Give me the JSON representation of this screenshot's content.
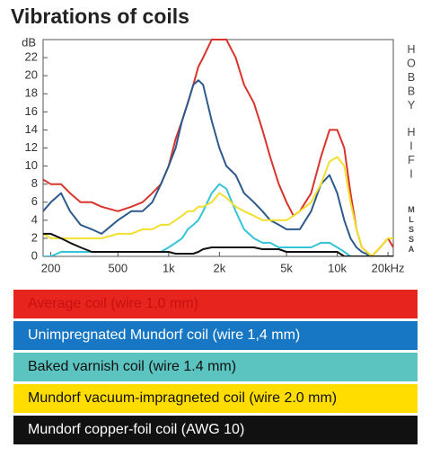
{
  "chart_data": {
    "type": "line",
    "title": "Vibrations of coils",
    "y_label": "dB",
    "side_labels": [
      "HOBBY",
      "HIFI",
      "MLSSA"
    ],
    "log_x": true,
    "xlim": [
      180,
      21500
    ],
    "ylim": [
      0,
      24
    ],
    "xticks": [
      200,
      500,
      {
        "value": 1000,
        "label": "1k"
      },
      {
        "value": 2000,
        "label": "2k"
      },
      {
        "value": 5000,
        "label": "5k"
      },
      {
        "value": 10000,
        "label": "10k"
      },
      {
        "value": 20000,
        "label": "20kHz"
      }
    ],
    "yticks": [
      0,
      2,
      4,
      6,
      8,
      10,
      12,
      14,
      16,
      18,
      20,
      22
    ],
    "x": [
      180,
      200,
      230,
      260,
      300,
      350,
      400,
      500,
      600,
      700,
      800,
      900,
      1000,
      1100,
      1200,
      1300,
      1400,
      1500,
      1600,
      1800,
      2000,
      2200,
      2500,
      2800,
      3200,
      3600,
      4000,
      4500,
      5000,
      5500,
      6000,
      7000,
      8000,
      9000,
      10000,
      11000,
      12000,
      13000,
      14000,
      16000,
      18000,
      20000,
      21500
    ],
    "series": [
      {
        "name": "Average coil (wire 1,0 mm)",
        "color": "#e8241e",
        "line_color": "#d9342b",
        "text_color": "#c81010",
        "values": [
          8.5,
          8,
          8,
          7,
          6,
          6,
          5.5,
          5,
          5.5,
          6,
          7,
          8,
          10,
          13,
          15,
          17,
          19,
          21,
          22,
          24,
          24,
          24,
          22,
          19,
          17,
          14,
          11,
          8,
          6,
          4.5,
          5,
          7,
          11,
          14,
          14,
          12,
          7,
          3,
          1,
          0,
          1,
          2,
          1
        ]
      },
      {
        "name": "Unimpregnated Mundorf coil (wire 1,4 mm)",
        "color": "#1877c4",
        "line_color": "#2c5a8c",
        "text_color": "#ffffff",
        "values": [
          5,
          6,
          7,
          5,
          3.5,
          3,
          2.5,
          4,
          5,
          5,
          6,
          8,
          10,
          12,
          15,
          17,
          19,
          19.5,
          19,
          15,
          12,
          10,
          9,
          7,
          6,
          5,
          4,
          3.5,
          3,
          3,
          3,
          5,
          8,
          9,
          7,
          4,
          2,
          1,
          0.5,
          0,
          0,
          0,
          0
        ]
      },
      {
        "name": "Baked varnish coil (wire 1.4 mm)",
        "color": "#5cc4c0",
        "line_color": "#33c4d8",
        "text_color": "#111111",
        "values": [
          0,
          0,
          0.5,
          0.5,
          0.5,
          0.5,
          0.5,
          0.5,
          0.5,
          0.5,
          0.5,
          0.5,
          1,
          1.5,
          2,
          3,
          3.5,
          4,
          5,
          7,
          8,
          7.5,
          5,
          3,
          2,
          1.5,
          1.5,
          1,
          1,
          1,
          1,
          1,
          1.5,
          1.5,
          1,
          0.5,
          0,
          0,
          0,
          0,
          0,
          0,
          0
        ]
      },
      {
        "name": "Mundorf vacuum-impragneted coil (wire 2.0 mm)",
        "color": "#ffdd00",
        "line_color": "#f2df2e",
        "text_color": "#111111",
        "values": [
          2.5,
          2,
          2,
          2,
          2,
          2,
          2,
          2.5,
          2.5,
          3,
          3,
          3.5,
          3.5,
          4,
          4.5,
          5,
          5,
          5.5,
          5.5,
          6,
          7,
          6.5,
          5.5,
          5,
          4.5,
          4,
          4,
          4,
          4,
          4.5,
          5,
          6,
          8,
          10.5,
          11,
          10,
          6,
          3,
          1,
          0,
          1,
          2,
          2
        ]
      },
      {
        "name": "Mundorf copper-foil coil (AWG 10)",
        "color": "#111111",
        "line_color": "#111111",
        "text_color": "#ffffff",
        "values": [
          2.5,
          2.5,
          2,
          1.5,
          1,
          0.5,
          0.5,
          0.5,
          0.5,
          0.5,
          0.5,
          0.5,
          0.5,
          0.3,
          0.3,
          0.3,
          0.3,
          0.5,
          0.8,
          1,
          1,
          1,
          1,
          1,
          1,
          0.8,
          0.8,
          0.8,
          0.5,
          0.5,
          0.5,
          0.5,
          0.5,
          0.5,
          0.5,
          0,
          0,
          0,
          0,
          0,
          0,
          0,
          0
        ]
      }
    ]
  }
}
